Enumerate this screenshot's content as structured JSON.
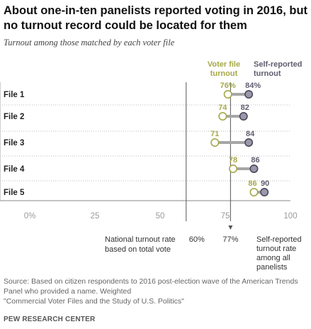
{
  "header": {
    "title": "About one-in-ten panelists reported voting in 2016, but no turnout record could be located for them",
    "subtitle": "Turnout among those matched by each voter file"
  },
  "chart_data": {
    "type": "dot-plot",
    "categories": [
      "File 1",
      "File 2",
      "File 3",
      "File 4",
      "File 5"
    ],
    "series": [
      {
        "name": "Voter file turnout",
        "values": [
          76,
          74,
          71,
          78,
          86
        ],
        "color": "#a5a849"
      },
      {
        "name": "Self-reported turnout",
        "values": [
          84,
          82,
          84,
          86,
          90
        ],
        "color": "#5f5e6f"
      }
    ],
    "value_labels": {
      "voter_file": [
        "76%",
        "74",
        "71",
        "78",
        "86"
      ],
      "self_reported": [
        "84%",
        "82",
        "84",
        "86",
        "90"
      ]
    },
    "legend_labels": {
      "voter_file": [
        "Voter file",
        "turnout"
      ],
      "self_reported": [
        "Self-reported",
        "turnout"
      ]
    },
    "xlim": [
      0,
      100
    ],
    "xticks": [
      0,
      25,
      50,
      75,
      100
    ],
    "xtick_labels": [
      "0%",
      "25",
      "50",
      "75",
      "100"
    ],
    "reference_lines": [
      {
        "value": 60,
        "value_label": "60%",
        "label_lines": [
          "National turnout rate",
          "based on total vote"
        ]
      },
      {
        "value": 77,
        "value_label": "77%",
        "label_lines": [
          "Self-reported",
          "turnout rate",
          "among all",
          "panelists"
        ]
      }
    ],
    "grid": "dotted-horizontal"
  },
  "footer": {
    "source_lines": [
      "Source: Based on citizen respondents to 2016 post-election wave of the American Trends",
      "Panel who provided a name. Weighted",
      "\"Commercial Voter Files and the Study of U.S. Politics\""
    ],
    "brand": "PEW RESEARCH CENTER"
  }
}
